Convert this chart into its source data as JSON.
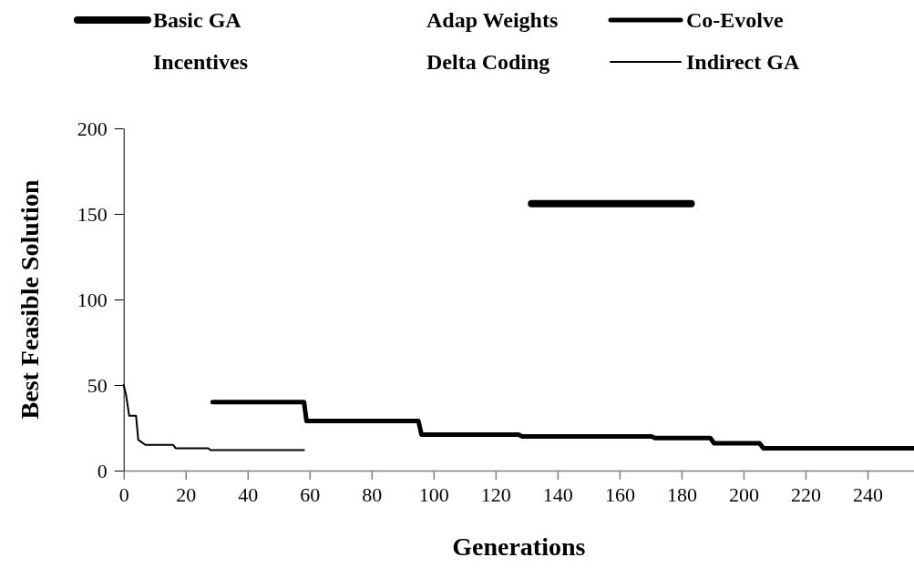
{
  "chart_data": {
    "type": "line",
    "xlabel": "Generations",
    "ylabel": "Best Feasible Solution",
    "xlim": [
      0,
      255
    ],
    "xticks": [
      0,
      20,
      40,
      60,
      80,
      100,
      120,
      140,
      160,
      180,
      200,
      220,
      240
    ],
    "ylim": [
      0,
      200
    ],
    "yticks": [
      0,
      50,
      100,
      150,
      200
    ],
    "grid": false,
    "legend": "top",
    "marker": "none",
    "line_style": "solid",
    "series": [
      {
        "name": "Basic GA",
        "color": "#000000",
        "x": [
          131.6,
          183.1
        ],
        "values": [
          156,
          156
        ]
      },
      {
        "name": "Adap Weights"
      },
      {
        "name": "Co-Evolve",
        "color": "#000000",
        "x": [
          28.7,
          58.2,
          59,
          95.1,
          96.1,
          127.4,
          128.6,
          170.3,
          171.5,
          189.3,
          190.5,
          205.2,
          206.4,
          255
        ],
        "values": [
          40,
          40,
          29,
          29,
          21,
          21,
          20,
          20,
          19,
          19,
          16,
          16,
          13,
          13
        ]
      },
      {
        "name": "Incentives"
      },
      {
        "name": "Delta Coding"
      },
      {
        "name": "Indirect GA",
        "color": "#000000",
        "x": [
          0,
          0.8,
          1.8,
          4.0,
          4.7,
          7.0,
          16,
          16.8,
          27.3,
          28,
          58.2
        ],
        "values": [
          50,
          44,
          32,
          32,
          18,
          15,
          15,
          13,
          13,
          12,
          12
        ]
      }
    ]
  }
}
